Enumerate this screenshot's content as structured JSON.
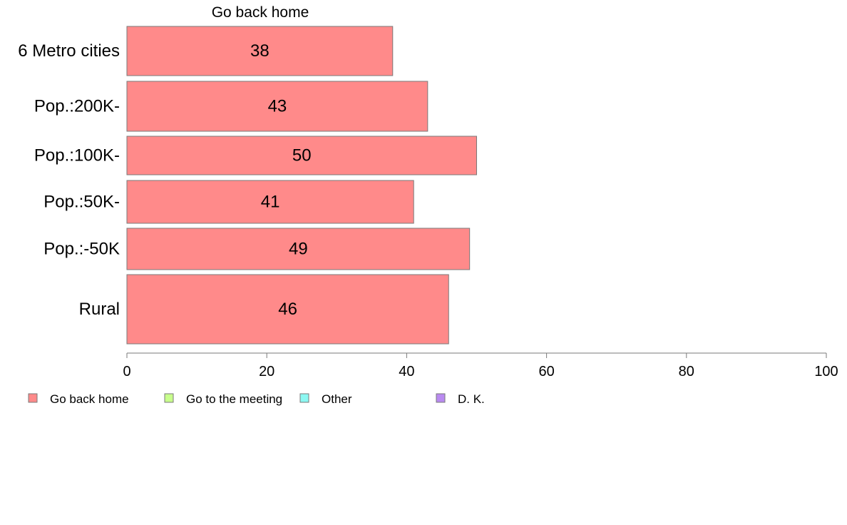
{
  "chart_data": {
    "type": "bar",
    "orientation": "horizontal",
    "title": "Go back home",
    "categories": [
      "6 Metro cities",
      "Pop.:200K-",
      "Pop.:100K-",
      "Pop.:50K-",
      "Pop.:-50K",
      "Rural"
    ],
    "series": [
      {
        "name": "Go back home",
        "values": [
          38,
          43,
          50,
          41,
          49,
          46
        ]
      }
    ],
    "xlim": [
      0,
      100
    ],
    "xticks": [
      0,
      20,
      40,
      60,
      80,
      100
    ],
    "grid": false,
    "legend": {
      "placement": "bottom-left",
      "entries": [
        {
          "label": "Go back home",
          "color": "#ff8a8a"
        },
        {
          "label": "Go to the meeting",
          "color": "#c8ff8c"
        },
        {
          "label": "Other",
          "color": "#8cf8f2"
        },
        {
          "label": "D. K.",
          "color": "#b98af0"
        }
      ]
    },
    "colors": {
      "bar": "#ff8a8a",
      "bar_stroke": "#7a7a7a",
      "axis": "#7a7a7a"
    }
  }
}
